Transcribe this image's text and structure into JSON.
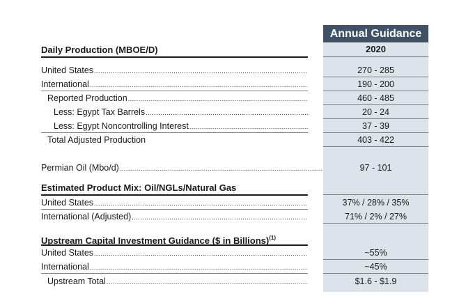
{
  "column": {
    "header": "Annual Guidance",
    "year": "2020"
  },
  "sections": {
    "daily": "Daily Production (MBOE/D)",
    "mix": "Estimated Product Mix: Oil/NGLs/Natural Gas",
    "capex": "Upstream Capital Investment Guidance ($ in Billions)",
    "capex_note": "(1)"
  },
  "rows": [
    {
      "label": "United States",
      "value": "270 - 285"
    },
    {
      "label": "International",
      "value": "190 - 200"
    },
    {
      "label": "Reported Production",
      "value": "460 - 485"
    },
    {
      "label": "Less: Egypt Tax Barrels",
      "value": "20 - 24"
    },
    {
      "label": "Less: Egypt Noncontrolling Interest",
      "value": "37 - 39"
    },
    {
      "label": "Total Adjusted Production",
      "value": "403 - 422"
    },
    {
      "label": "Permian Oil (Mbo/d)",
      "value": "97 - 101"
    },
    {
      "label": "United States",
      "value": "37% / 28% / 35%"
    },
    {
      "label": "International (Adjusted)",
      "value": "71% / 2% / 27%"
    },
    {
      "label": "United States",
      "value": "~55%"
    },
    {
      "label": "International",
      "value": "~45%"
    },
    {
      "label": "Upstream Total",
      "value": "$1.6 - $1.9"
    }
  ]
}
